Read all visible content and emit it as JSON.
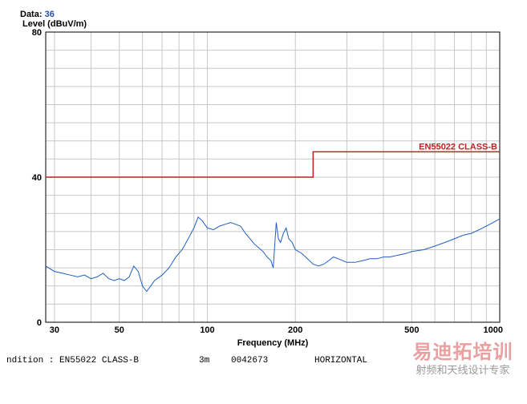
{
  "header": {
    "data_label": "Data:",
    "data_value": "36"
  },
  "chart_data": {
    "type": "line",
    "xscale": "log",
    "xlim": [
      28,
      1000
    ],
    "ylim": [
      0,
      80
    ],
    "ylabel": "Level (dBuV/m)",
    "xlabel": "Frequency (MHz)",
    "x_ticks": [
      30,
      50,
      100,
      200,
      500,
      1000
    ],
    "y_ticks": [
      0,
      40,
      80
    ],
    "grid": true,
    "colors": {
      "trace": "#1f5fbf",
      "limit": "#c41e1e",
      "grid": "#c8c8c8"
    },
    "limit": {
      "name": "EN55022 CLASS-B",
      "points": [
        [
          28,
          40
        ],
        [
          230,
          40
        ],
        [
          230,
          47
        ],
        [
          1000,
          47
        ]
      ]
    },
    "series": [
      {
        "values": [
          [
            28,
            15.5
          ],
          [
            30,
            14
          ],
          [
            32,
            13.5
          ],
          [
            34,
            13
          ],
          [
            36,
            12.5
          ],
          [
            38,
            13
          ],
          [
            40,
            12
          ],
          [
            42,
            12.5
          ],
          [
            44,
            13.5
          ],
          [
            46,
            12
          ],
          [
            48,
            11.5
          ],
          [
            50,
            12
          ],
          [
            52,
            11.5
          ],
          [
            54,
            12.5
          ],
          [
            56,
            15.5
          ],
          [
            58,
            14
          ],
          [
            60,
            10
          ],
          [
            62,
            8.5
          ],
          [
            64,
            10
          ],
          [
            66,
            11.5
          ],
          [
            70,
            13
          ],
          [
            74,
            15
          ],
          [
            78,
            18
          ],
          [
            82,
            20
          ],
          [
            86,
            23
          ],
          [
            90,
            26
          ],
          [
            93,
            29
          ],
          [
            96,
            28
          ],
          [
            100,
            26
          ],
          [
            105,
            25.5
          ],
          [
            110,
            26.5
          ],
          [
            115,
            27
          ],
          [
            120,
            27.5
          ],
          [
            125,
            27
          ],
          [
            130,
            26.5
          ],
          [
            135,
            24.5
          ],
          [
            140,
            23
          ],
          [
            145,
            21.5
          ],
          [
            150,
            20.5
          ],
          [
            155,
            19.5
          ],
          [
            160,
            18
          ],
          [
            165,
            17
          ],
          [
            168,
            15
          ],
          [
            172,
            27.5
          ],
          [
            175,
            23
          ],
          [
            178,
            22
          ],
          [
            182,
            24.5
          ],
          [
            186,
            26
          ],
          [
            190,
            23
          ],
          [
            195,
            22
          ],
          [
            200,
            20
          ],
          [
            210,
            19
          ],
          [
            220,
            17.5
          ],
          [
            230,
            16
          ],
          [
            240,
            15.5
          ],
          [
            250,
            16
          ],
          [
            260,
            17
          ],
          [
            270,
            18
          ],
          [
            280,
            17.5
          ],
          [
            290,
            17
          ],
          [
            300,
            16.5
          ],
          [
            320,
            16.5
          ],
          [
            340,
            17
          ],
          [
            360,
            17.5
          ],
          [
            380,
            17.5
          ],
          [
            400,
            18
          ],
          [
            420,
            18
          ],
          [
            450,
            18.5
          ],
          [
            480,
            19
          ],
          [
            500,
            19.5
          ],
          [
            550,
            20
          ],
          [
            600,
            21
          ],
          [
            650,
            22
          ],
          [
            700,
            23
          ],
          [
            750,
            24
          ],
          [
            800,
            24.5
          ],
          [
            850,
            25.5
          ],
          [
            900,
            26.5
          ],
          [
            950,
            27.5
          ],
          [
            1000,
            28.5
          ]
        ]
      }
    ]
  },
  "footer": {
    "condition": "ndition : EN55022 CLASS-B",
    "distance": "3m",
    "id": "0042673",
    "polarization": "HORIZONTAL"
  },
  "watermark": {
    "line1": "易迪拓培训",
    "line2": "射频和天线设计专家"
  }
}
